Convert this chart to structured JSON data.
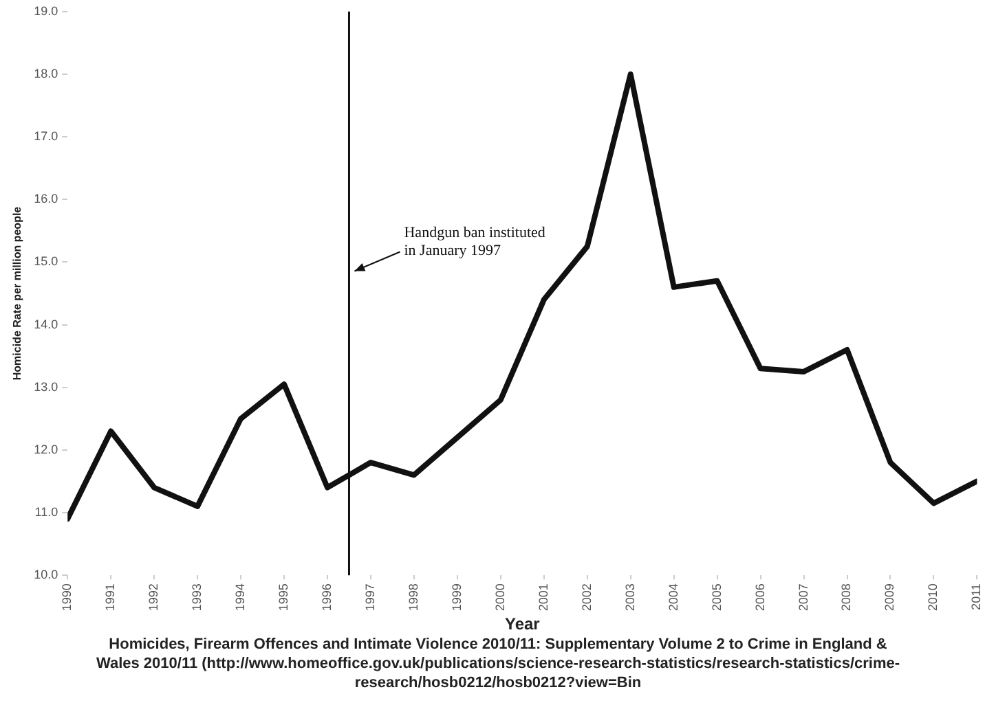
{
  "chart_data": {
    "type": "line",
    "xlabel": "Year",
    "ylabel": "Homicide Rate per million people",
    "x": [
      1990,
      1991,
      1992,
      1993,
      1994,
      1995,
      1996,
      1997,
      1998,
      1999,
      2000,
      2001,
      2002,
      2003,
      2004,
      2005,
      2006,
      2007,
      2008,
      2009,
      2010,
      2011
    ],
    "series": [
      {
        "color": "#111111",
        "values": [
          10.9,
          12.3,
          11.4,
          11.1,
          12.5,
          13.05,
          11.4,
          11.8,
          11.6,
          12.2,
          12.8,
          14.4,
          15.25,
          18.0,
          14.6,
          14.7,
          13.3,
          13.25,
          13.6,
          11.8,
          11.15,
          11.5
        ]
      }
    ],
    "xlim": [
      1990,
      2011
    ],
    "xticks": [
      1990,
      1991,
      1992,
      1993,
      1994,
      1995,
      1996,
      1997,
      1998,
      1999,
      2000,
      2001,
      2002,
      2003,
      2004,
      2005,
      2006,
      2007,
      2008,
      2009,
      2010,
      2011
    ],
    "ylim": [
      10,
      19
    ],
    "yticks": [
      {
        "value": 10,
        "label": "10.0"
      },
      {
        "value": 11,
        "label": "11.0"
      },
      {
        "value": 12,
        "label": "12.0"
      },
      {
        "value": 13,
        "label": "13.0"
      },
      {
        "value": 14,
        "label": "14.0"
      },
      {
        "value": 15,
        "label": "15.0"
      },
      {
        "value": 16,
        "label": "16.0"
      },
      {
        "value": 17,
        "label": "17.0"
      },
      {
        "value": 18,
        "label": "18.0"
      },
      {
        "value": 19,
        "label": "19.0"
      }
    ],
    "ref_lines": [
      {
        "axis": "x",
        "value": 1996.5,
        "label": "Handgun ban instituted in January 1997",
        "color": "#111111"
      }
    ],
    "grid": false,
    "legend": false,
    "marker": "none",
    "line_style": "solid",
    "annotations": [
      "Homicides, Firearm Offences and Intimate Violence 2010/11: Supplementary Volume 2 to Crime in England & Wales 2010/11 (http://www.homeoffice.gov.uk/publications/science-research-statistics/research-statistics/crime-research/hosb0212/hosb0212?view=Bin"
    ]
  }
}
